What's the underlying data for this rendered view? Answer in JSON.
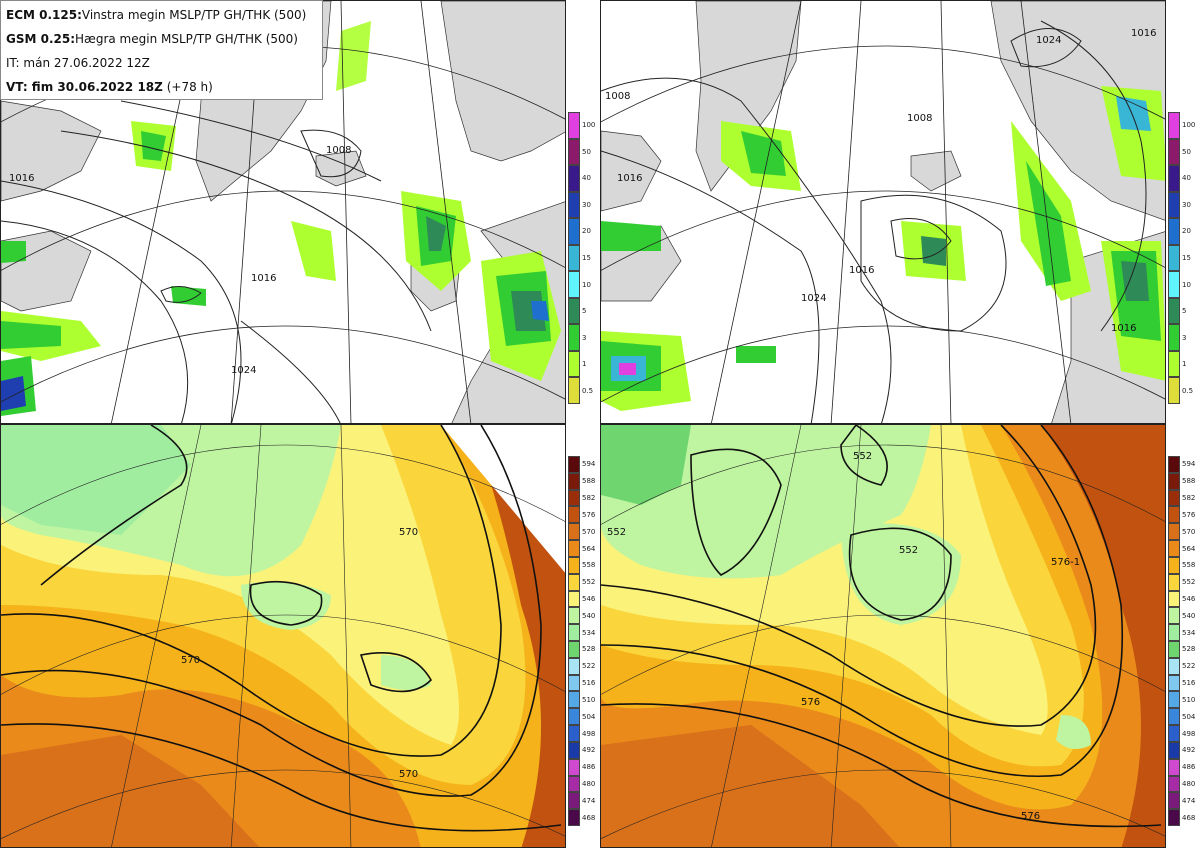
{
  "header": {
    "line1_bold": "ECM 0.125:",
    "line1_rest": "Vinstra megin MSLP/TP GH/THK (500)",
    "line2_bold": "GSM 0.25:",
    "line2_rest": "Hægra megin MSLP/TP GH/THK (500)",
    "line3": "IT: mán 27.06.2022 12Z",
    "line4_bold": "VT: fim 30.06.2022 18Z",
    "line4_rest": "(+78 h)"
  },
  "precip_colorbar": {
    "labels": [
      "100",
      "50",
      "40",
      "30",
      "20",
      "15",
      "10",
      "5",
      "3",
      "1",
      "0.5"
    ],
    "colors": [
      "#e040e0",
      "#8b1a6b",
      "#3a1a8a",
      "#1f3fb0",
      "#1f6fcf",
      "#39b5d6",
      "#5ff4ff",
      "#2e8b57",
      "#32cd32",
      "#adff2f",
      "#dede3a"
    ]
  },
  "thk_colorbar": {
    "labels": [
      "594",
      "588",
      "582",
      "576",
      "570",
      "564",
      "558",
      "552",
      "546",
      "540",
      "534",
      "528",
      "522",
      "516",
      "510",
      "504",
      "498",
      "492",
      "486",
      "480",
      "474",
      "468"
    ],
    "colors": [
      "#5a0a0a",
      "#7a1a0a",
      "#9a2e0a",
      "#c2520f",
      "#d9701a",
      "#e98a1a",
      "#f5b21a",
      "#fad63c",
      "#fbf27a",
      "#bff5a0",
      "#a0eda0",
      "#6fd66f",
      "#a8e4f4",
      "#7fc8f0",
      "#55a8e6",
      "#3a86da",
      "#2a5fcc",
      "#1a3aa8",
      "#d04ad0",
      "#a62ca6",
      "#7a1a7a",
      "#4a0a4a"
    ]
  },
  "contour_labels": {
    "tl": [
      "1016",
      "1016",
      "1008",
      "1024"
    ],
    "tr": [
      "1024",
      "1008",
      "1016",
      "1016",
      "1016",
      "1024",
      "1016",
      "1008"
    ],
    "bl": [
      "570",
      "570",
      "570"
    ],
    "br": [
      "552",
      "552",
      "552",
      "576",
      "576",
      "576-1"
    ]
  }
}
